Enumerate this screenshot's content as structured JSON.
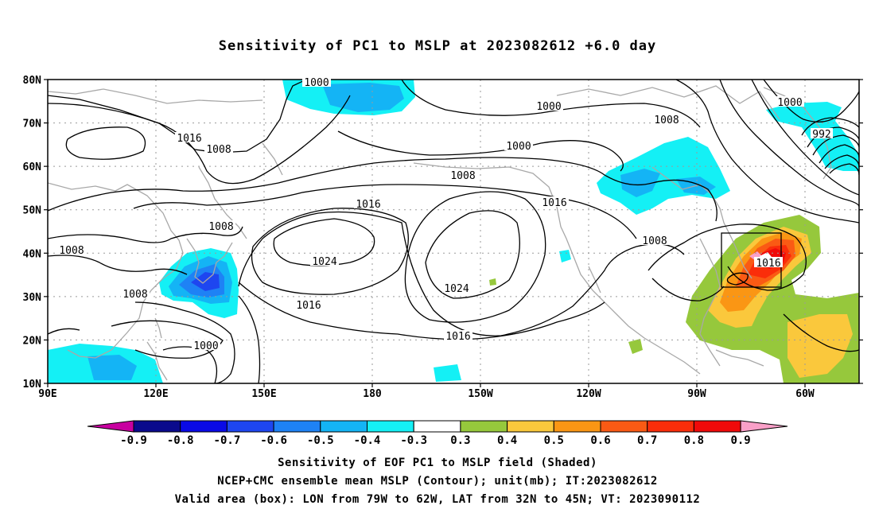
{
  "title": "Sensitivity of PC1 to MSLP at 2023082612 +6.0 day",
  "map": {
    "lat_labels": [
      "80N",
      "70N",
      "60N",
      "50N",
      "40N",
      "30N",
      "20N",
      "10N"
    ],
    "lon_labels": [
      "90E",
      "120E",
      "150E",
      "180",
      "150W",
      "120W",
      "90W",
      "60W"
    ],
    "isobar_labels": [
      {
        "text": "1000",
        "pos": [
          398,
          103
        ]
      },
      {
        "text": "1000",
        "pos": [
          690,
          133
        ]
      },
      {
        "text": "1008",
        "pos": [
          838,
          150
        ]
      },
      {
        "text": "1000",
        "pos": [
          993,
          128
        ]
      },
      {
        "text": "992",
        "pos": [
          1033,
          168
        ]
      },
      {
        "text": "1016",
        "pos": [
          238,
          173
        ]
      },
      {
        "text": "1008",
        "pos": [
          275,
          187
        ]
      },
      {
        "text": "1000",
        "pos": [
          652,
          183
        ]
      },
      {
        "text": "1008",
        "pos": [
          582,
          220
        ]
      },
      {
        "text": "1016",
        "pos": [
          463,
          256
        ]
      },
      {
        "text": "1016",
        "pos": [
          697,
          254
        ]
      },
      {
        "text": "1008",
        "pos": [
          278,
          284
        ]
      },
      {
        "text": "1008",
        "pos": [
          823,
          302
        ]
      },
      {
        "text": "1008",
        "pos": [
          90,
          314
        ]
      },
      {
        "text": "1024",
        "pos": [
          408,
          328
        ]
      },
      {
        "text": "1016",
        "pos": [
          966,
          330
        ]
      },
      {
        "text": "1024",
        "pos": [
          574,
          362
        ]
      },
      {
        "text": "1008",
        "pos": [
          170,
          369
        ]
      },
      {
        "text": "1016",
        "pos": [
          388,
          383
        ]
      },
      {
        "text": "1016",
        "pos": [
          576,
          422
        ]
      },
      {
        "text": "1000",
        "pos": [
          259,
          434
        ]
      }
    ]
  },
  "colorbar": {
    "labels": [
      "-0.9",
      "-0.8",
      "-0.7",
      "-0.6",
      "-0.5",
      "-0.4",
      "-0.3",
      "0.3",
      "0.4",
      "0.5",
      "0.6",
      "0.7",
      "0.8",
      "0.9"
    ],
    "colors": [
      "#0a0a8c",
      "#0a0ae6",
      "#1e46f0",
      "#1e82f5",
      "#14b4f5",
      "#14f0f5",
      "#ffffff",
      "#96c83c",
      "#fac83c",
      "#fa9614",
      "#fa5a14",
      "#fa2d0a",
      "#f00a0a"
    ],
    "low_end_color": "#c800a0",
    "high_end_color": "#faa0c8"
  },
  "captions": {
    "line1": "Sensitivity of EOF PC1 to MSLP field (Shaded)",
    "line2": "NCEP+CMC ensemble mean MSLP (Contour); unit(mb); IT:2023082612",
    "line3": "Valid area (box): LON from 79W to 62W, LAT from 32N to 45N; VT: 2023090112"
  }
}
